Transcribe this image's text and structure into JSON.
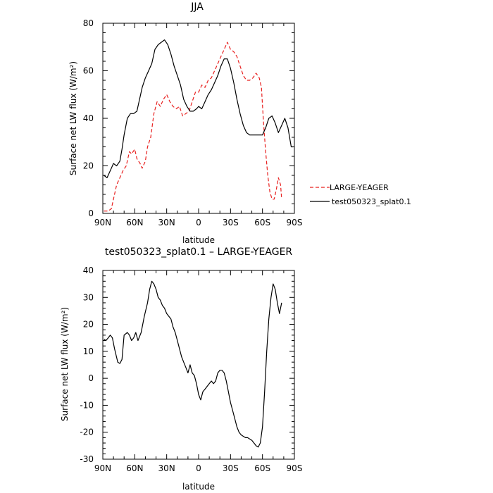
{
  "chart_data": [
    {
      "type": "line",
      "title": "JJA",
      "xlabel": "latitude",
      "ylabel": "Surface net LW flux (W/m²)",
      "xlim": [
        90,
        -90
      ],
      "ylim": [
        0,
        80
      ],
      "x_ticks": [
        {
          "v": 90,
          "label": "90N"
        },
        {
          "v": 60,
          "label": "60N"
        },
        {
          "v": 30,
          "label": "30N"
        },
        {
          "v": 0,
          "label": "0"
        },
        {
          "v": -30,
          "label": "30S"
        },
        {
          "v": -60,
          "label": "60S"
        },
        {
          "v": -90,
          "label": "90S"
        }
      ],
      "y_ticks": [
        0,
        20,
        40,
        60,
        80
      ],
      "legend": "right",
      "series": [
        {
          "name": "LARGE-YEAGER",
          "color": "#e8201f",
          "dash": "dashed",
          "x": [
            89,
            85,
            82,
            80,
            77,
            74,
            71,
            68,
            65,
            63,
            60,
            58,
            55,
            53,
            50,
            48,
            45,
            42,
            39,
            36,
            33,
            30,
            27,
            24,
            21,
            18,
            15,
            12,
            9,
            6,
            3,
            0,
            -3,
            -6,
            -9,
            -12,
            -15,
            -18,
            -21,
            -24,
            -27,
            -30,
            -33,
            -36,
            -39,
            -42,
            -45,
            -48,
            -51,
            -54,
            -57,
            -59,
            -61,
            -63,
            -65,
            -67,
            -69,
            -71,
            -73,
            -75,
            -77,
            -78
          ],
          "y": [
            1,
            1,
            2,
            6,
            12,
            15,
            18,
            20,
            26,
            25,
            27,
            23,
            21,
            19,
            22,
            28,
            32,
            42,
            47,
            45,
            48,
            50,
            47,
            45,
            44,
            45,
            41,
            42,
            43,
            47,
            51,
            51,
            54,
            53,
            56,
            57,
            60,
            63,
            66,
            69,
            72,
            69,
            68,
            66,
            62,
            58,
            56,
            56,
            57,
            59,
            57,
            53,
            38,
            26,
            16,
            9,
            6,
            6,
            10,
            15,
            12,
            6
          ]
        },
        {
          "name": "test050323_splat0.1",
          "color": "#000000",
          "dash": "solid",
          "x": [
            89,
            86,
            83,
            80,
            77,
            74,
            72,
            70,
            67,
            64,
            61,
            58,
            56,
            53,
            50,
            47,
            44,
            41,
            38,
            35,
            32,
            29,
            26,
            23,
            20,
            17,
            14,
            11,
            8,
            5,
            2,
            0,
            -3,
            -6,
            -9,
            -12,
            -15,
            -18,
            -21,
            -24,
            -27,
            -30,
            -33,
            -36,
            -39,
            -42,
            -45,
            -48,
            -51,
            -54,
            -57,
            -60,
            -63,
            -66,
            -69,
            -72,
            -75,
            -78,
            -81,
            -84,
            -87,
            -89
          ],
          "y": [
            16,
            15,
            18,
            21,
            20,
            22,
            27,
            33,
            40,
            42,
            42,
            43,
            47,
            53,
            57,
            60,
            63,
            69,
            71,
            72,
            73,
            71,
            67,
            62,
            58,
            54,
            48,
            45,
            43,
            43,
            44,
            45,
            44,
            47,
            50,
            52,
            55,
            58,
            62,
            65,
            65,
            61,
            55,
            48,
            42,
            37,
            34,
            33,
            33,
            33,
            33,
            33,
            36,
            40,
            41,
            38,
            34,
            37,
            40,
            36,
            28,
            28
          ]
        }
      ]
    },
    {
      "type": "line",
      "title": "test050323_splat0.1 – LARGE-YEAGER",
      "xlabel": "latitude",
      "ylabel": "Surface net LW flux (W/m²)",
      "xlim": [
        90,
        -90
      ],
      "ylim": [
        -30,
        40
      ],
      "x_ticks": [
        {
          "v": 90,
          "label": "90N"
        },
        {
          "v": 60,
          "label": "60N"
        },
        {
          "v": 30,
          "label": "30N"
        },
        {
          "v": 0,
          "label": "0"
        },
        {
          "v": -30,
          "label": "30S"
        },
        {
          "v": -60,
          "label": "60S"
        },
        {
          "v": -90,
          "label": "90S"
        }
      ],
      "y_ticks": [
        -30,
        -20,
        -10,
        0,
        10,
        20,
        30,
        40
      ],
      "series": [
        {
          "color": "#000000",
          "dash": "solid",
          "x": [
            89,
            87,
            85,
            83,
            81,
            79,
            76,
            74,
            72,
            70,
            67,
            65,
            63,
            61,
            59,
            57,
            54,
            51,
            48,
            46,
            44,
            42,
            40,
            38,
            36,
            34,
            32,
            30,
            28,
            26,
            24,
            22,
            20,
            18,
            16,
            14,
            12,
            10,
            8,
            6,
            4,
            2,
            0,
            -2,
            -4,
            -6,
            -8,
            -10,
            -12,
            -14,
            -16,
            -18,
            -20,
            -22,
            -24,
            -26,
            -28,
            -30,
            -32,
            -34,
            -36,
            -38,
            -40,
            -42,
            -44,
            -46,
            -48,
            -50,
            -52,
            -54,
            -56,
            -58,
            -60,
            -62,
            -64,
            -66,
            -68,
            -70,
            -72,
            -74,
            -76,
            -78
          ],
          "y": [
            14.5,
            14,
            15,
            16,
            15,
            11,
            6,
            5.5,
            7,
            16,
            17,
            16,
            14,
            15,
            17,
            14,
            17,
            23,
            28,
            33,
            36,
            35,
            33,
            30,
            29,
            27,
            26,
            24,
            23,
            22,
            19,
            17,
            14,
            11,
            8,
            6,
            4,
            2,
            5,
            2,
            1,
            -2,
            -6,
            -8,
            -5,
            -4,
            -3,
            -2,
            -1,
            -2,
            -1,
            2,
            3,
            3,
            2,
            -1,
            -5,
            -9,
            -12,
            -15,
            -18,
            -20,
            -21,
            -21.5,
            -22,
            -22,
            -22.5,
            -23,
            -24,
            -25,
            -25.5,
            -24,
            -18,
            -5,
            10,
            22,
            30,
            35,
            33,
            28,
            24,
            28
          ]
        }
      ]
    }
  ]
}
